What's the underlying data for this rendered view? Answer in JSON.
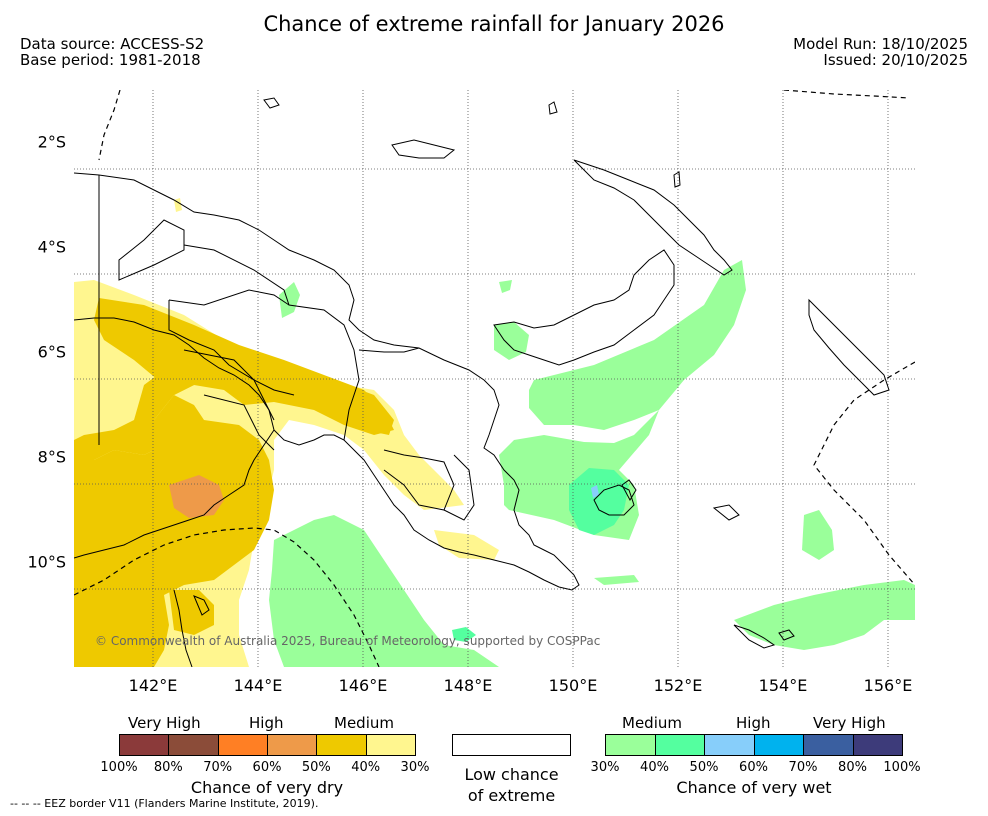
{
  "title": "Chance of extreme rainfall for January 2026",
  "data_source": "Data source: ACCESS-S2",
  "base_period": "Base period: 1981-2018",
  "model_run": "Model Run: 18/10/2025",
  "issued": "Issued: 20/10/2025",
  "map": {
    "lat_labels": [
      "2°S",
      "4°S",
      "6°S",
      "8°S",
      "10°S"
    ],
    "lon_labels": [
      "142°E",
      "144°E",
      "146°E",
      "148°E",
      "150°E",
      "152°E",
      "154°E",
      "156°E"
    ],
    "copyright": "© Commonwealth of Australia 2025, Bureau of Meteorology, supported by COSPPac",
    "colors": {
      "dry_medium_30": "#fff68f",
      "dry_medium_40": "#eec900",
      "dry_high_60": "#ee9a49",
      "wet_medium_30": "#9aff9a",
      "wet_medium_40": "#54ff9f",
      "wet_high_50": "#87cefa"
    }
  },
  "legend": {
    "dry": {
      "group_labels": [
        "Very High",
        "High",
        "Medium"
      ],
      "colors": [
        "#8b3a3a",
        "#8b4c39",
        "#ff7f24",
        "#ee9a49",
        "#eec900",
        "#fff68f"
      ],
      "ticks": [
        "100%",
        "80%",
        "70%",
        "60%",
        "50%",
        "40%",
        "30%"
      ],
      "caption": "Chance of very dry"
    },
    "neutral": {
      "caption_line1": "Low chance",
      "caption_line2": "of extreme"
    },
    "wet": {
      "group_labels": [
        "Medium",
        "High",
        "Very High"
      ],
      "colors": [
        "#9aff9a",
        "#54ff9f",
        "#87cefa",
        "#00b2ee",
        "#3a5fa0",
        "#3d3b7a"
      ],
      "ticks": [
        "30%",
        "40%",
        "50%",
        "60%",
        "70%",
        "80%",
        "100%"
      ],
      "caption": "Chance of very wet"
    }
  },
  "eez_note": "--  --  -- EEZ border V11 (Flanders Marine Institute, 2019)."
}
